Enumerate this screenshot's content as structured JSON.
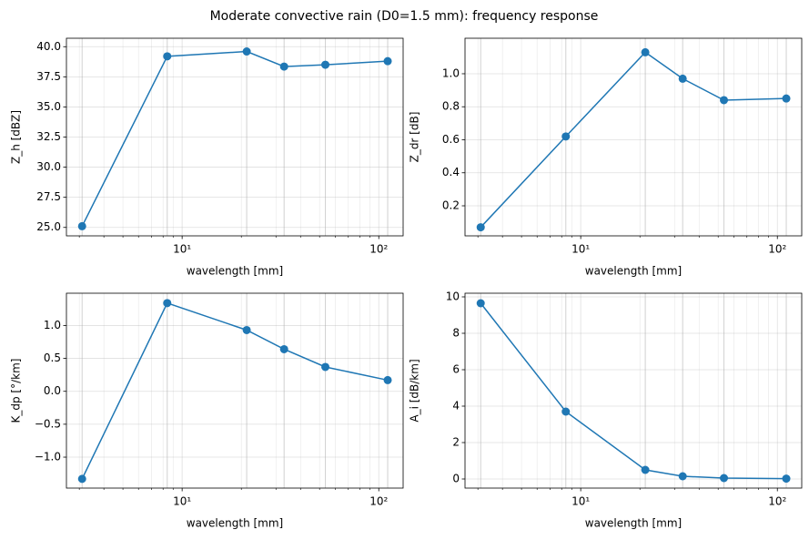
{
  "title": "Moderate convective rain (D0=1.5 mm): frequency response",
  "chart_data": [
    {
      "type": "line",
      "xlabel": "wavelength [mm]",
      "ylabel": "Z_h [dBZ]",
      "xscale": "log",
      "grid": true,
      "mark_x": true,
      "x": [
        3.1,
        8.4,
        21.3,
        33,
        53.5,
        111
      ],
      "values": [
        25.1,
        39.2,
        39.6,
        38.35,
        38.5,
        38.8
      ],
      "color": "#1f77b4",
      "xlim": [
        2.58,
        133
      ],
      "xticks": [
        {
          "value": 10,
          "label": "10¹"
        },
        {
          "value": 100,
          "label": "10²"
        }
      ],
      "ylim": [
        24.3,
        40.7
      ],
      "yticks": [
        {
          "value": 25,
          "label": "25.0"
        },
        27.5,
        {
          "value": 30,
          "label": "30.0"
        },
        32.5,
        {
          "value": 35,
          "label": "35.0"
        },
        37.5,
        {
          "value": 40,
          "label": "40.0"
        }
      ]
    },
    {
      "type": "line",
      "xlabel": "wavelength [mm]",
      "ylabel": "Z_dr [dB]",
      "xscale": "log",
      "grid": true,
      "mark_x": true,
      "x": [
        3.1,
        8.4,
        21.3,
        33,
        53.5,
        111
      ],
      "values": [
        0.07,
        0.62,
        1.13,
        0.97,
        0.84,
        0.85
      ],
      "color": "#1f77b4",
      "xlim": [
        2.58,
        133
      ],
      "xticks": [
        {
          "value": 10,
          "label": "10¹"
        },
        {
          "value": 100,
          "label": "10²"
        }
      ],
      "ylim": [
        0.018,
        1.215
      ],
      "yticks": [
        0.2,
        0.4,
        0.6,
        0.8,
        {
          "value": 1,
          "label": "1.0"
        }
      ]
    },
    {
      "type": "line",
      "xlabel": "wavelength [mm]",
      "ylabel": "K_dp [°/km]",
      "xscale": "log",
      "grid": true,
      "mark_x": true,
      "x": [
        3.1,
        8.4,
        21.3,
        33,
        53.5,
        111
      ],
      "values": [
        -1.33,
        1.34,
        0.93,
        0.64,
        0.37,
        0.17
      ],
      "color": "#1f77b4",
      "xlim": [
        2.58,
        133
      ],
      "xticks": [
        {
          "value": 10,
          "label": "10¹"
        },
        {
          "value": 100,
          "label": "10²"
        }
      ],
      "ylim": [
        -1.47,
        1.49
      ],
      "yticks": [
        {
          "value": -1,
          "label": "−1.0"
        },
        {
          "value": -0.5,
          "label": "−0.5"
        },
        {
          "value": 0,
          "label": "0.0"
        },
        0.5,
        {
          "value": 1,
          "label": "1.0"
        }
      ]
    },
    {
      "type": "line",
      "xlabel": "wavelength [mm]",
      "ylabel": "A_i [dB/km]",
      "xscale": "log",
      "grid": true,
      "mark_x": true,
      "x": [
        3.1,
        8.4,
        21.3,
        33,
        53.5,
        111
      ],
      "values": [
        9.65,
        3.7,
        0.5,
        0.15,
        0.05,
        0.02
      ],
      "color": "#1f77b4",
      "xlim": [
        2.58,
        133
      ],
      "xticks": [
        {
          "value": 10,
          "label": "10¹"
        },
        {
          "value": 100,
          "label": "10²"
        }
      ],
      "ylim": [
        -0.5,
        10.2
      ],
      "yticks": [
        0,
        2,
        4,
        6,
        8,
        10
      ]
    }
  ]
}
